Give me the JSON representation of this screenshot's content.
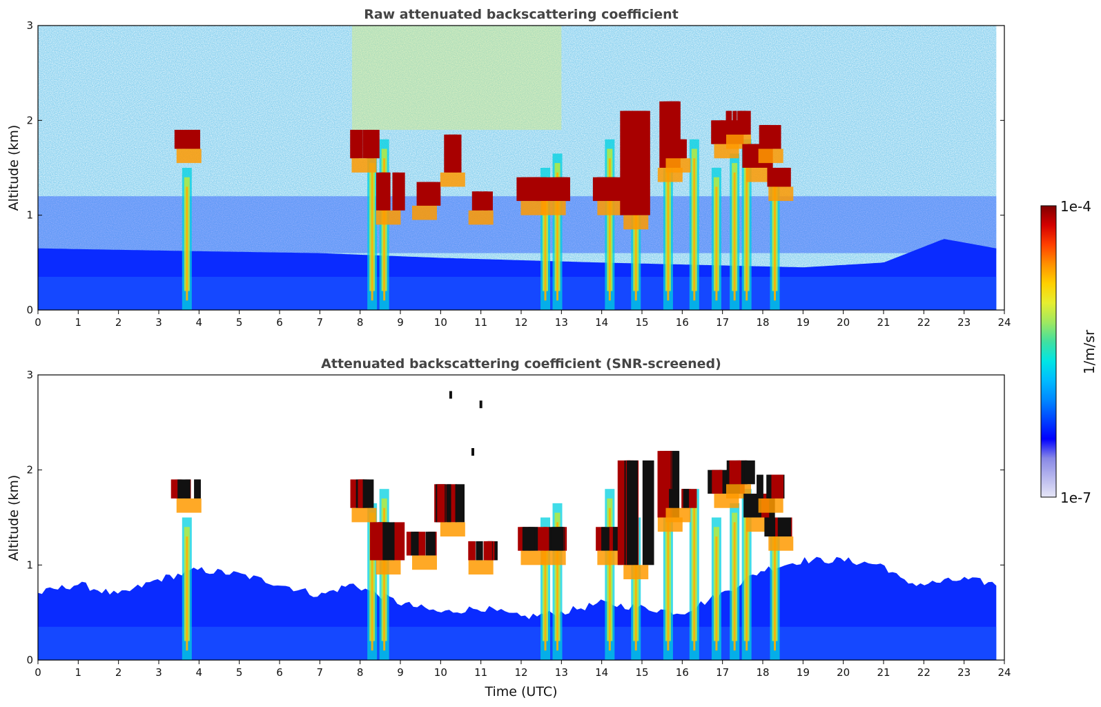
{
  "figure": {
    "xlabel": "Time (UTC)",
    "ylabel": "Altitude (km)"
  },
  "colorbar": {
    "max_label": "1e-4",
    "min_label": "1e-7",
    "unit_label": "1/m/sr",
    "scale": "log",
    "range": [
      1e-07,
      0.0001
    ],
    "colormap": [
      "#e6e6f7",
      "#b8b8ee",
      "#8888e6",
      "#0000ff",
      "#0044ff",
      "#0088ff",
      "#00bbff",
      "#00e5e5",
      "#40e0a0",
      "#9fe860",
      "#e6ee30",
      "#ffd000",
      "#ff9000",
      "#ff4000",
      "#d40000",
      "#800000"
    ]
  },
  "chart_data": [
    {
      "type": "heatmap",
      "title": "Raw attenuated backscattering coefficient",
      "xlabel": "",
      "ylabel": "Altitude (km)",
      "xlim": [
        0,
        24
      ],
      "ylim": [
        0,
        3
      ],
      "xticks": [
        "0",
        "1",
        "2",
        "3",
        "4",
        "5",
        "6",
        "7",
        "8",
        "9",
        "10",
        "11",
        "12",
        "13",
        "14",
        "15",
        "16",
        "17",
        "18",
        "19",
        "20",
        "21",
        "22",
        "23",
        "24"
      ],
      "yticks": [
        "0",
        "1",
        "2",
        "3"
      ],
      "data_end_hour": 23.8,
      "boundary_layer_top_km": [
        [
          0,
          0.65
        ],
        [
          4,
          0.62
        ],
        [
          7,
          0.6
        ],
        [
          10,
          0.55
        ],
        [
          14,
          0.5
        ],
        [
          19,
          0.45
        ],
        [
          21,
          0.5
        ],
        [
          22.5,
          0.75
        ],
        [
          23.8,
          0.65
        ]
      ],
      "cloud_base_km": [
        {
          "hour": 3.75,
          "base": 1.7,
          "top": 1.9
        },
        {
          "hour": 8.1,
          "base": 1.6,
          "top": 1.9
        },
        {
          "hour": 8.7,
          "base": 1.05,
          "top": 1.45
        },
        {
          "hour": 9.6,
          "base": 1.1,
          "top": 1.35
        },
        {
          "hour": 10.3,
          "base": 1.45,
          "top": 1.85
        },
        {
          "hour": 11.0,
          "base": 1.05,
          "top": 1.25
        },
        {
          "hour": 12.3,
          "base": 1.15,
          "top": 1.4
        },
        {
          "hour": 12.8,
          "base": 1.15,
          "top": 1.4
        },
        {
          "hour": 14.2,
          "base": 1.15,
          "top": 1.4
        },
        {
          "hour": 14.85,
          "base": 1.0,
          "top": 2.1
        },
        {
          "hour": 15.7,
          "base": 1.5,
          "top": 2.2
        },
        {
          "hour": 15.9,
          "base": 1.6,
          "top": 1.8
        },
        {
          "hour": 17.1,
          "base": 1.75,
          "top": 2.0
        },
        {
          "hour": 17.4,
          "base": 1.85,
          "top": 2.1
        },
        {
          "hour": 17.9,
          "base": 1.5,
          "top": 1.75
        },
        {
          "hour": 18.2,
          "base": 1.7,
          "top": 1.95
        },
        {
          "hour": 18.45,
          "base": 1.3,
          "top": 1.5
        }
      ],
      "fallstreak_hours": [
        3.7,
        8.3,
        8.6,
        12.6,
        12.9,
        14.2,
        14.85,
        15.65,
        16.3,
        16.85,
        17.3,
        17.6,
        18.3
      ]
    },
    {
      "type": "heatmap",
      "title": "Attenuated backscattering coefficient (SNR-screened)",
      "xlabel": "Time (UTC)",
      "ylabel": "Altitude (km)",
      "xlim": [
        0,
        24
      ],
      "ylim": [
        0,
        3
      ],
      "xticks": [
        "0",
        "1",
        "2",
        "3",
        "4",
        "5",
        "6",
        "7",
        "8",
        "9",
        "10",
        "11",
        "12",
        "13",
        "14",
        "15",
        "16",
        "17",
        "18",
        "19",
        "20",
        "21",
        "22",
        "23",
        "24"
      ],
      "yticks": [
        "0",
        "1",
        "2",
        "3"
      ],
      "data_end_hour": 23.8,
      "screened_top_km": [
        [
          0,
          0.7
        ],
        [
          1,
          0.8
        ],
        [
          2,
          0.68
        ],
        [
          3,
          0.85
        ],
        [
          4,
          0.95
        ],
        [
          5,
          0.9
        ],
        [
          6,
          0.8
        ],
        [
          7,
          0.68
        ],
        [
          7.8,
          0.8
        ],
        [
          9,
          0.6
        ],
        [
          10,
          0.5
        ],
        [
          11,
          0.55
        ],
        [
          12,
          0.45
        ],
        [
          13,
          0.5
        ],
        [
          14,
          0.6
        ],
        [
          15,
          0.55
        ],
        [
          16,
          0.5
        ],
        [
          17,
          0.7
        ],
        [
          18,
          0.95
        ],
        [
          19,
          1.05
        ],
        [
          20,
          1.05
        ],
        [
          21,
          1.0
        ],
        [
          21.5,
          0.82
        ],
        [
          22,
          0.8
        ],
        [
          23,
          0.85
        ],
        [
          23.8,
          0.8
        ]
      ],
      "isolated_features": [
        {
          "hour": 10.25,
          "altitude": 2.75
        },
        {
          "hour": 11.0,
          "altitude": 2.65
        },
        {
          "hour": 10.8,
          "altitude": 2.15
        }
      ]
    }
  ]
}
